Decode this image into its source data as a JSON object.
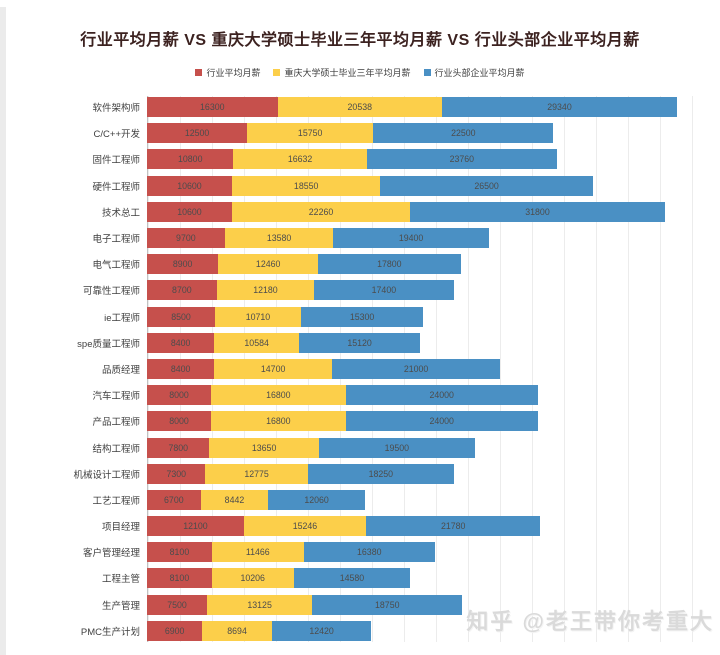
{
  "title": "行业平均月薪 VS 重庆大学硕士毕业三年平均月薪 VS 行业头部企业平均月薪",
  "watermark": "知乎 @老王带你考重大",
  "colors": {
    "industry_avg": "#c6504c",
    "cqu_grad_avg": "#fccf4a",
    "top_company_avg": "#4a90c4",
    "grid": "#ececec",
    "axis": "#c2c2c2",
    "title_text": "#3c2220",
    "watermark_text": "#dadada"
  },
  "chart_data": {
    "type": "bar",
    "orientation": "horizontal",
    "stacked": true,
    "grid": true,
    "legend_position": "top",
    "value_labels": "inside-center",
    "xlim": [
      0,
      71000
    ],
    "gridline_step": 4000,
    "categories": [
      "软件架构师",
      "C/C++开发",
      "固件工程师",
      "硬件工程师",
      "技术总工",
      "电子工程师",
      "电气工程师",
      "可靠性工程师",
      "ie工程师",
      "spe质量工程师",
      "品质经理",
      "汽车工程师",
      "产品工程师",
      "结构工程师",
      "机械设计工程师",
      "工艺工程师",
      "项目经理",
      "客户管理经理",
      "工程主管",
      "生产管理",
      "PMC生产计划"
    ],
    "series": [
      {
        "key": "industry_avg",
        "name": "行业平均月薪",
        "color": "#c6504c",
        "values": [
          16300,
          12500,
          10800,
          10600,
          10600,
          9700,
          8900,
          8700,
          8500,
          8400,
          8400,
          8000,
          8000,
          7800,
          7300,
          6700,
          12100,
          8100,
          8100,
          7500,
          6900
        ]
      },
      {
        "key": "cqu_grad_avg",
        "name": "重庆大学硕士毕业三年平均月薪",
        "color": "#fccf4a",
        "values": [
          20538,
          15750,
          16632,
          18550,
          22260,
          13580,
          12460,
          12180,
          10710,
          10584,
          14700,
          16800,
          16800,
          13650,
          12775,
          8442,
          15246,
          11466,
          10206,
          13125,
          8694
        ]
      },
      {
        "key": "top_company_avg",
        "name": "行业头部企业平均月薪",
        "color": "#4a90c4",
        "values": [
          29340,
          22500,
          23760,
          26500,
          31800,
          19400,
          17800,
          17400,
          15300,
          15120,
          21000,
          24000,
          24000,
          19500,
          18250,
          12060,
          21780,
          16380,
          14580,
          18750,
          12420
        ]
      }
    ]
  }
}
